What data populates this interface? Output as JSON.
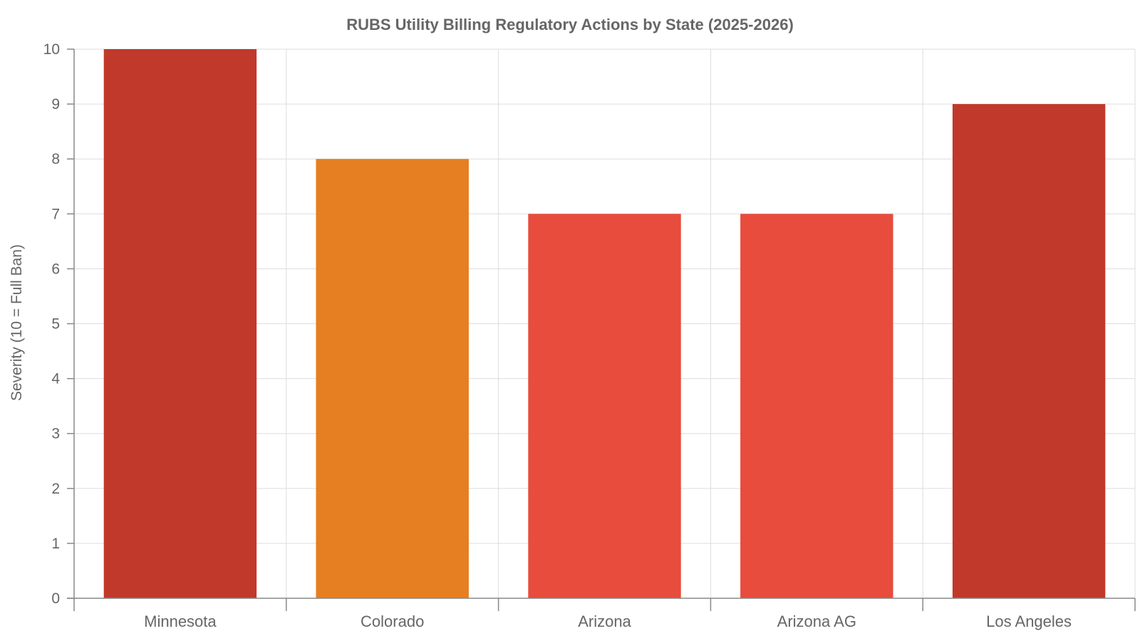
{
  "chart_data": {
    "type": "bar",
    "title": "RUBS Utility Billing Regulatory Actions by State (2025-2026)",
    "xlabel": "",
    "ylabel": "Severity (10 = Full Ban)",
    "categories": [
      "Minnesota",
      "Colorado",
      "Arizona",
      "Arizona AG",
      "Los Angeles"
    ],
    "values": [
      10,
      8,
      7,
      7,
      9
    ],
    "colors": [
      "#c0392b",
      "#e67e22",
      "#e74c3c",
      "#e74c3c",
      "#c0392b"
    ],
    "ylim": [
      0,
      10
    ],
    "yticks": [
      0,
      1,
      2,
      3,
      4,
      5,
      6,
      7,
      8,
      9,
      10
    ],
    "grid": true,
    "legend": "none"
  }
}
